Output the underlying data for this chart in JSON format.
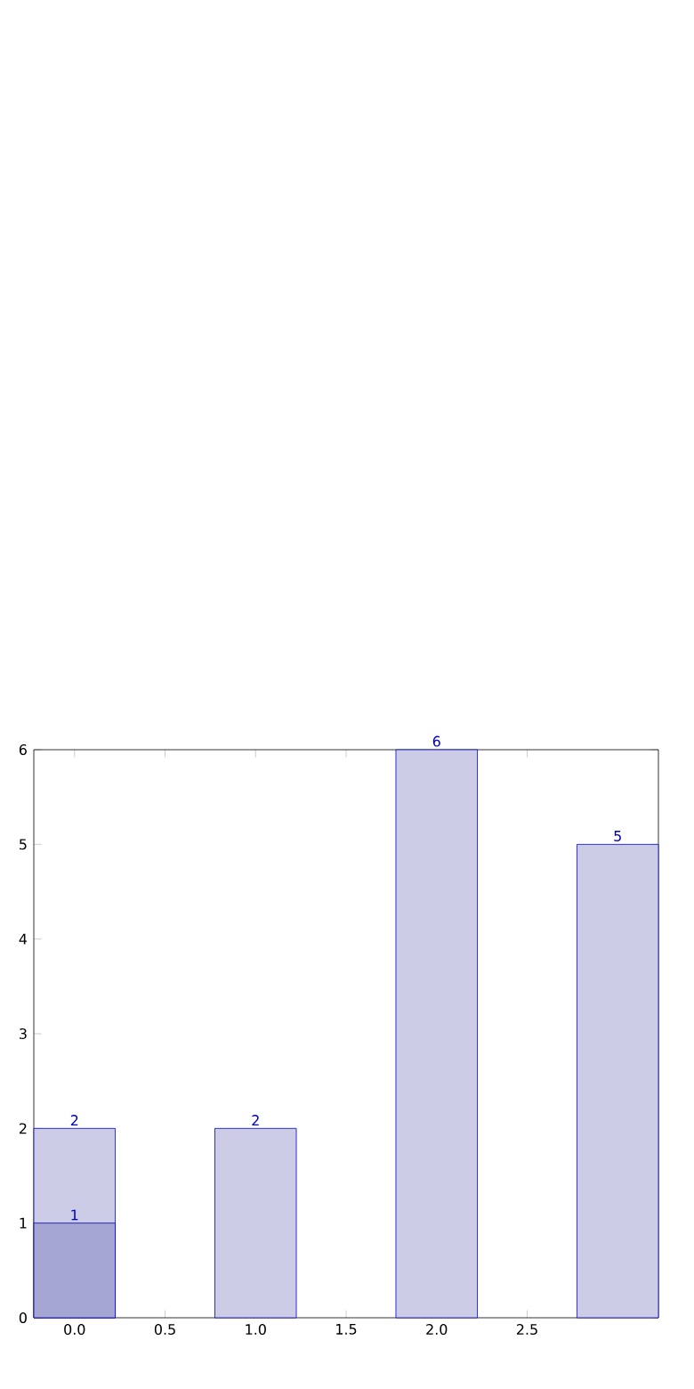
{
  "chart_data": {
    "type": "bar",
    "x": [
      0,
      1,
      2,
      3
    ],
    "series": [
      {
        "color": "#ccccE6",
        "values": [
          2,
          2,
          6,
          5
        ]
      },
      {
        "color": "#a6a6d2",
        "values": [
          1,
          null,
          null,
          null
        ]
      }
    ],
    "xlim": [
      -0.225,
      3.225
    ],
    "ylim": [
      0,
      6
    ],
    "xticks": [
      {
        "value": 0,
        "label": "0.0"
      },
      {
        "value": 0.5,
        "label": "0.5"
      },
      {
        "value": 1,
        "label": "1.0"
      },
      {
        "value": 1.5,
        "label": "1.5"
      },
      {
        "value": 2,
        "label": "2.0"
      },
      {
        "value": 2.5,
        "label": "2.5"
      }
    ],
    "yticks": [
      0,
      1,
      2,
      3,
      4,
      5,
      6
    ],
    "data_labels": true
  }
}
